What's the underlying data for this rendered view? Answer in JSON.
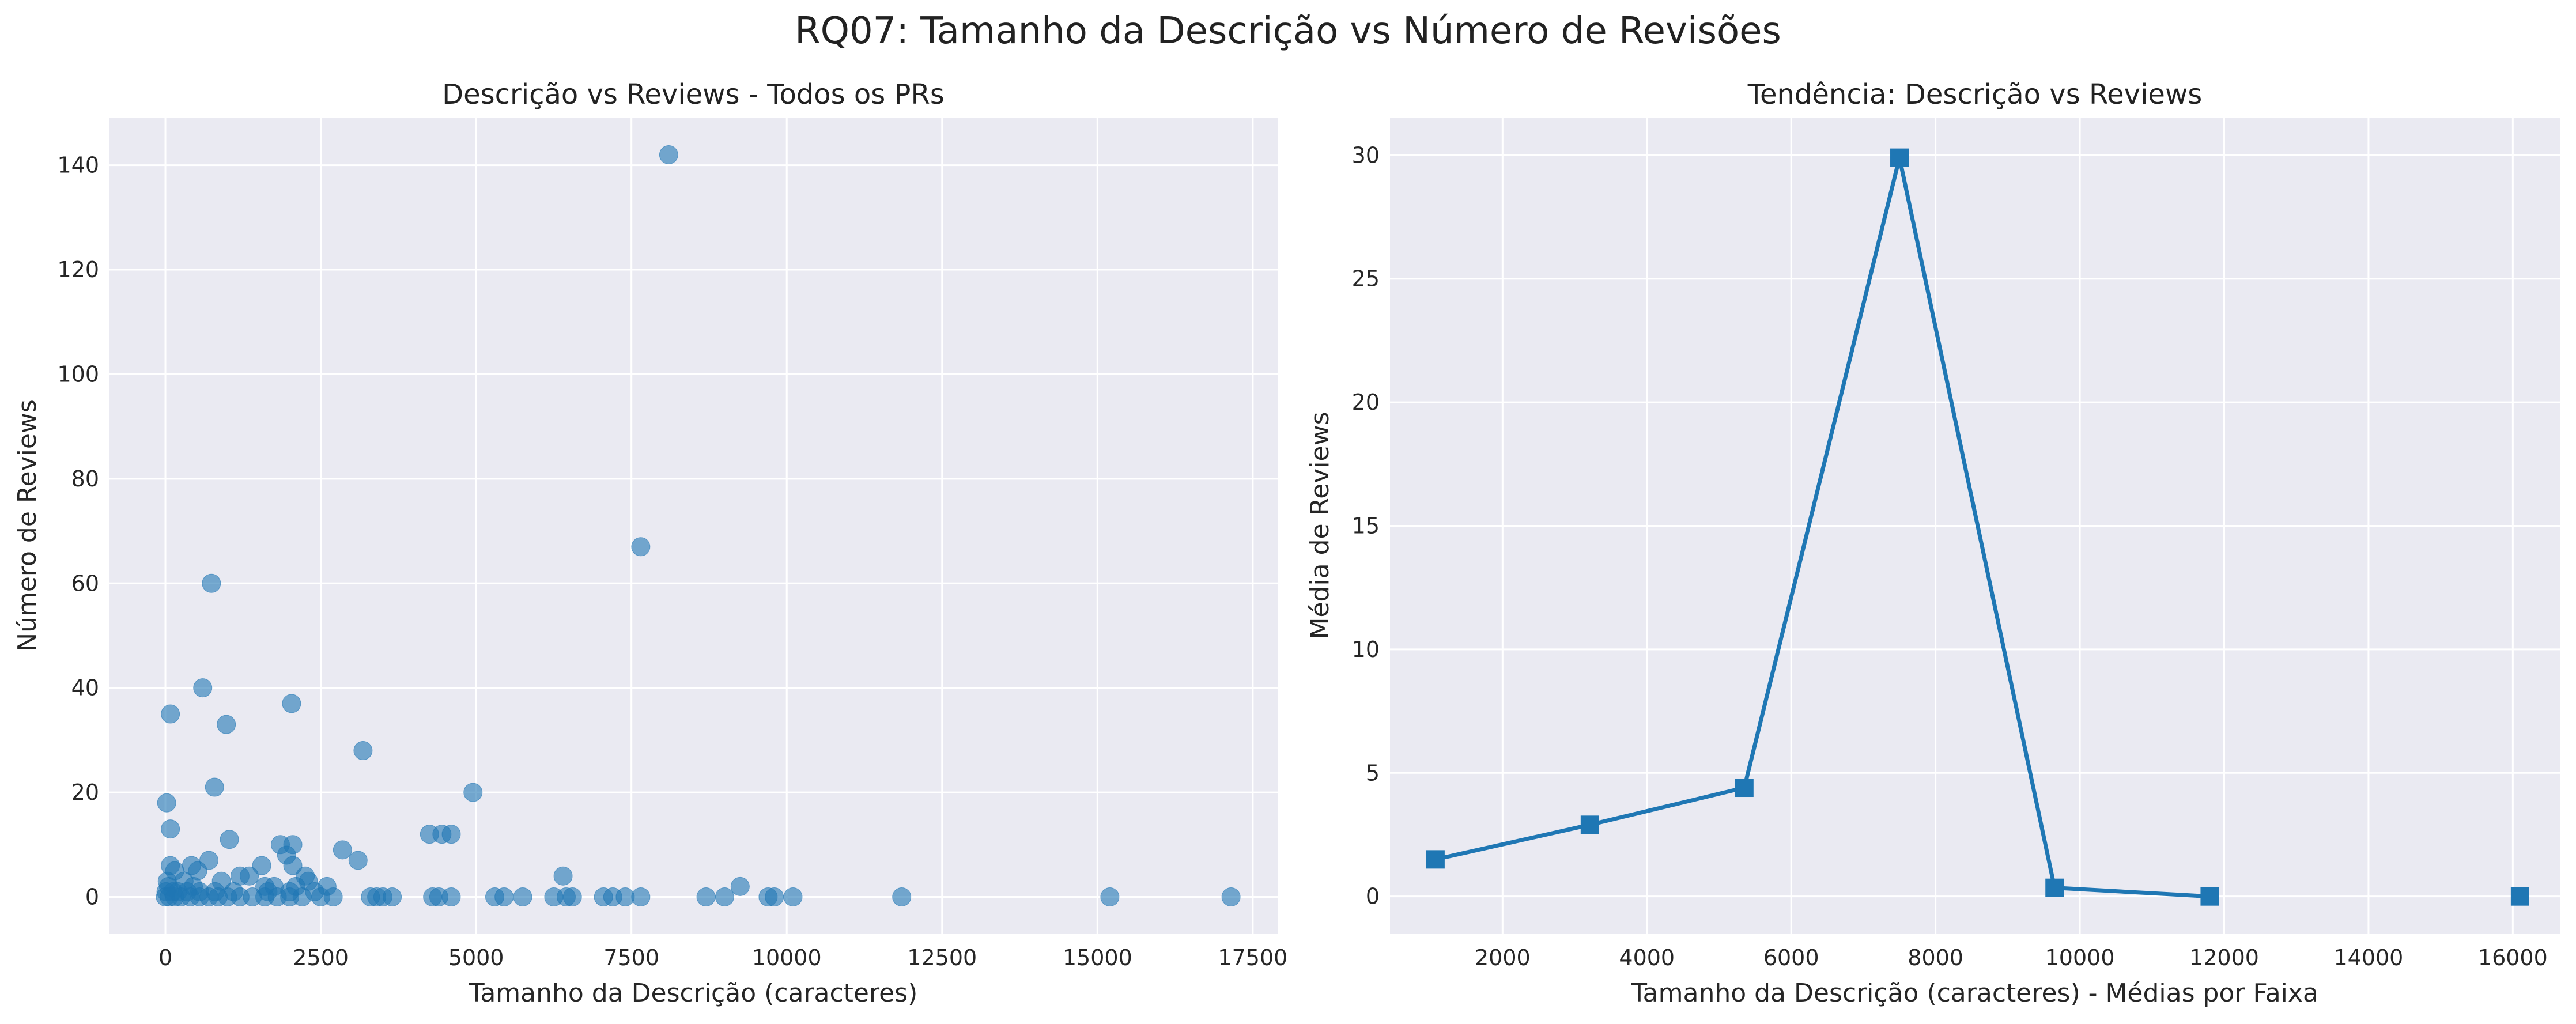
{
  "figure": {
    "title": "RQ07: Tamanho da Descrição vs Número de Revisões"
  },
  "chart_data": [
    {
      "type": "scatter",
      "title": "Descrição vs Reviews - Todos os PRs",
      "xlabel": "Tamanho da Descrição (caracteres)",
      "ylabel": "Número de Reviews",
      "xlim": [
        -900,
        17900
      ],
      "ylim": [
        -7,
        149
      ],
      "xticks": [
        0,
        2500,
        5000,
        7500,
        10000,
        12500,
        15000,
        17500
      ],
      "yticks": [
        0,
        20,
        40,
        60,
        80,
        100,
        120,
        140
      ],
      "grid": true,
      "color": "#1f77b4",
      "points": [
        [
          8100,
          142
        ],
        [
          7650,
          67
        ],
        [
          740,
          60
        ],
        [
          600,
          40
        ],
        [
          2030,
          37
        ],
        [
          80,
          35
        ],
        [
          980,
          33
        ],
        [
          3180,
          28
        ],
        [
          790,
          21
        ],
        [
          4950,
          20
        ],
        [
          20,
          18
        ],
        [
          80,
          13
        ],
        [
          4250,
          12
        ],
        [
          4450,
          12
        ],
        [
          4600,
          12
        ],
        [
          1030,
          11
        ],
        [
          1850,
          10
        ],
        [
          2050,
          10
        ],
        [
          2850,
          9
        ],
        [
          1950,
          8
        ],
        [
          700,
          7
        ],
        [
          3100,
          7
        ],
        [
          80,
          6
        ],
        [
          420,
          6
        ],
        [
          1550,
          6
        ],
        [
          2050,
          6
        ],
        [
          150,
          5
        ],
        [
          520,
          5
        ],
        [
          1200,
          4
        ],
        [
          1350,
          4
        ],
        [
          2250,
          4
        ],
        [
          6400,
          4
        ],
        [
          30,
          3
        ],
        [
          300,
          3
        ],
        [
          900,
          3
        ],
        [
          2300,
          3
        ],
        [
          50,
          2
        ],
        [
          450,
          2
        ],
        [
          1600,
          2
        ],
        [
          1750,
          2
        ],
        [
          2100,
          2
        ],
        [
          2600,
          2
        ],
        [
          9250,
          2
        ],
        [
          10,
          1
        ],
        [
          120,
          1
        ],
        [
          200,
          1
        ],
        [
          350,
          1
        ],
        [
          550,
          1
        ],
        [
          800,
          1
        ],
        [
          1100,
          1
        ],
        [
          1650,
          1
        ],
        [
          2000,
          1
        ],
        [
          2400,
          1
        ],
        [
          0,
          0
        ],
        [
          60,
          0
        ],
        [
          150,
          0
        ],
        [
          250,
          0
        ],
        [
          400,
          0
        ],
        [
          550,
          0
        ],
        [
          700,
          0
        ],
        [
          850,
          0
        ],
        [
          1000,
          0
        ],
        [
          1200,
          0
        ],
        [
          1400,
          0
        ],
        [
          1600,
          0
        ],
        [
          1800,
          0
        ],
        [
          2000,
          0
        ],
        [
          2200,
          0
        ],
        [
          2500,
          0
        ],
        [
          2700,
          0
        ],
        [
          3300,
          0
        ],
        [
          3400,
          0
        ],
        [
          3500,
          0
        ],
        [
          3650,
          0
        ],
        [
          4300,
          0
        ],
        [
          4400,
          0
        ],
        [
          4600,
          0
        ],
        [
          5300,
          0
        ],
        [
          5450,
          0
        ],
        [
          5750,
          0
        ],
        [
          6250,
          0
        ],
        [
          6450,
          0
        ],
        [
          6550,
          0
        ],
        [
          7050,
          0
        ],
        [
          7200,
          0
        ],
        [
          7400,
          0
        ],
        [
          7650,
          0
        ],
        [
          8700,
          0
        ],
        [
          9000,
          0
        ],
        [
          9700,
          0
        ],
        [
          9800,
          0
        ],
        [
          10100,
          0
        ],
        [
          11850,
          0
        ],
        [
          15200,
          0
        ],
        [
          17150,
          0
        ]
      ]
    },
    {
      "type": "line",
      "title": "Tendência: Descrição vs Reviews",
      "xlabel": "Tamanho da Descrição (caracteres) - Médias por Faixa",
      "ylabel": "Média de Reviews",
      "xlim": [
        440,
        16660
      ],
      "ylim": [
        -1.5,
        31.5
      ],
      "xticks": [
        2000,
        4000,
        6000,
        8000,
        10000,
        12000,
        14000,
        16000
      ],
      "yticks": [
        0,
        5,
        10,
        15,
        20,
        25,
        30
      ],
      "grid": true,
      "color": "#1f77b4",
      "marker": "square",
      "x": [
        1070,
        3210,
        5350,
        7500,
        9650,
        11800,
        16100
      ],
      "y": [
        1.5,
        2.9,
        4.4,
        29.9,
        0.35,
        0.0,
        0.0
      ]
    }
  ]
}
